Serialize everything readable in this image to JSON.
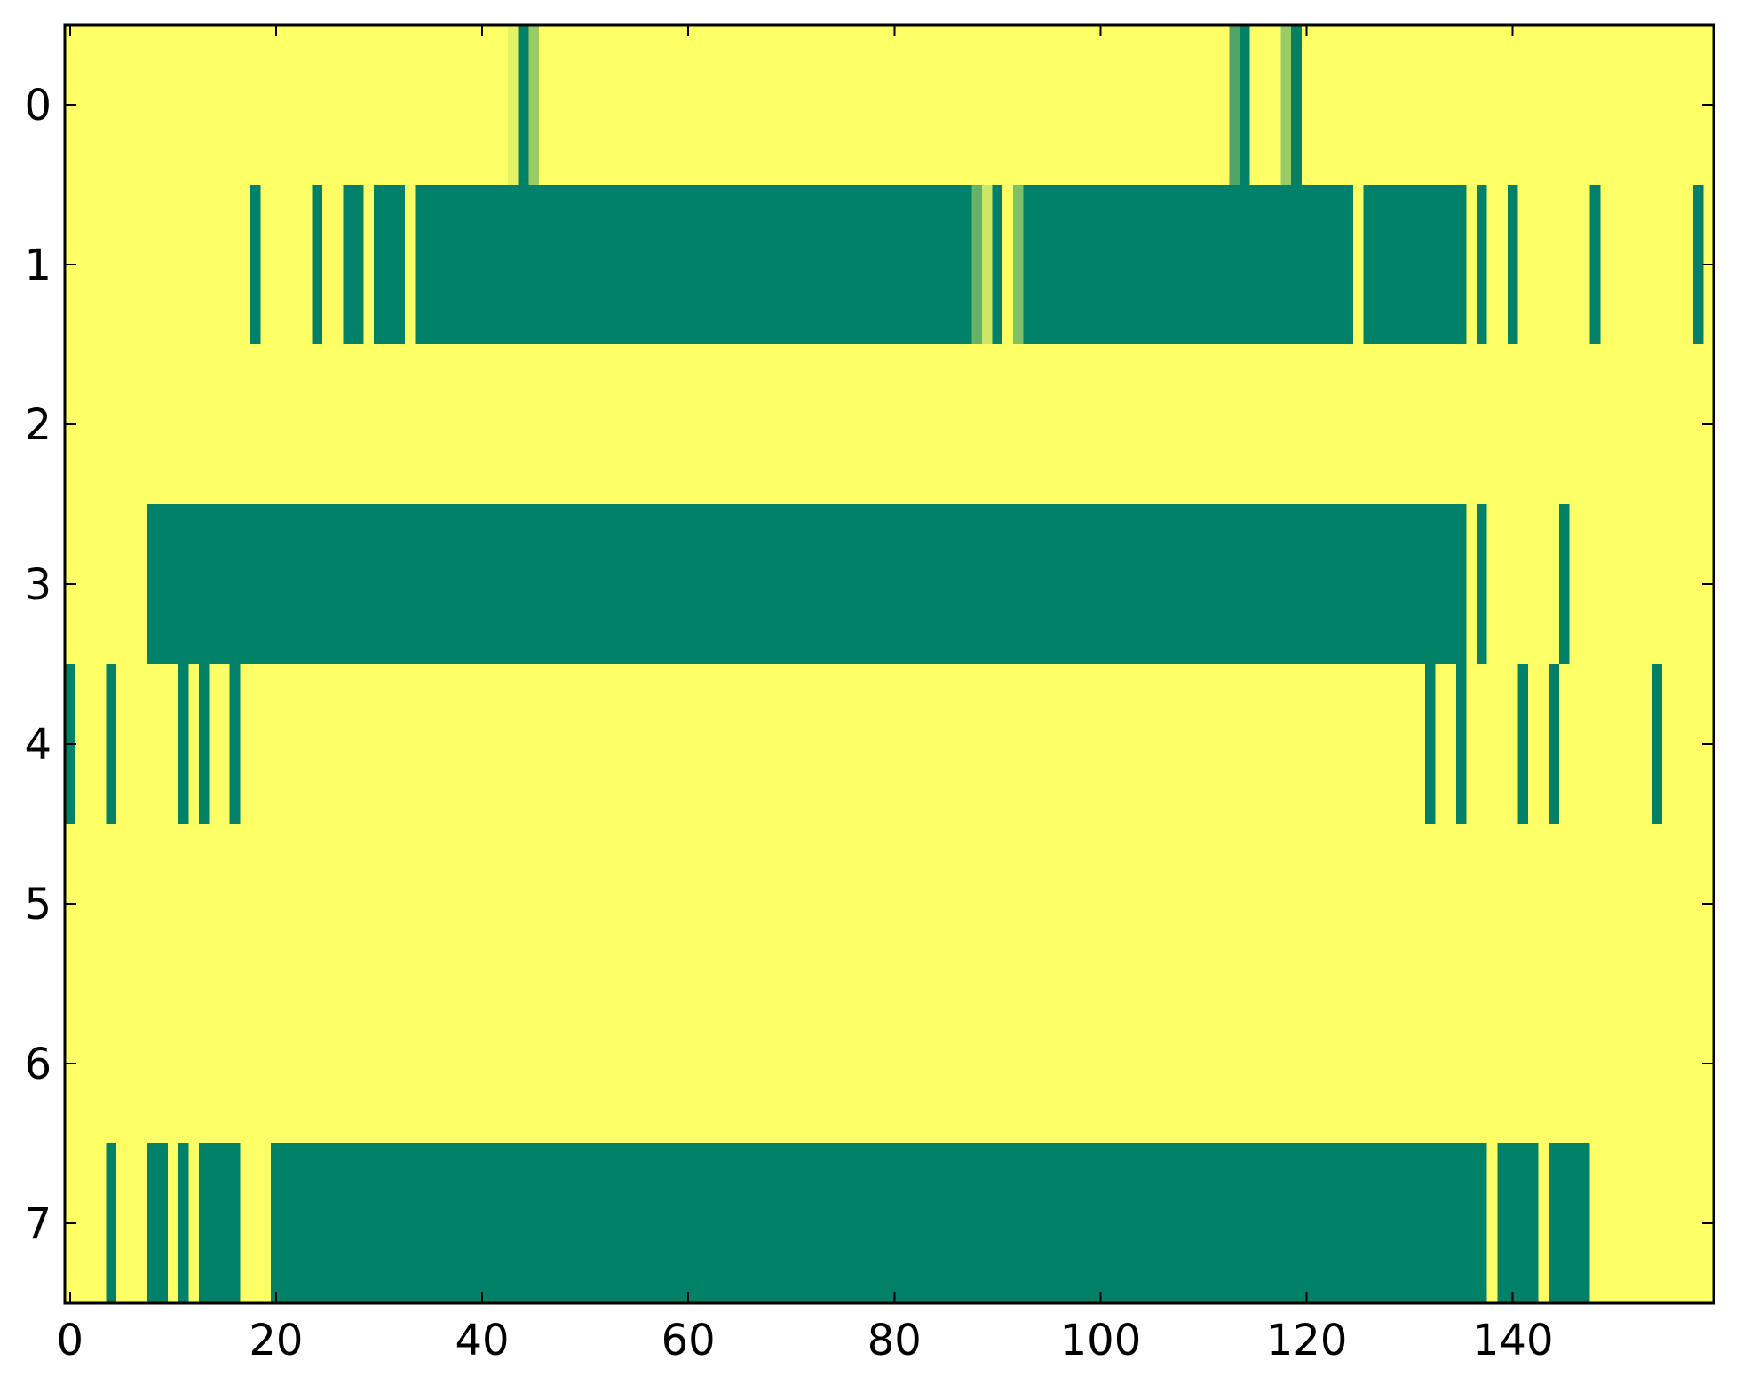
{
  "chart_data": {
    "type": "heatmap",
    "xlim": [
      -0.5,
      159.5
    ],
    "ylim": [
      7.5,
      -0.5
    ],
    "xticks": [
      0,
      20,
      40,
      60,
      80,
      100,
      120,
      140
    ],
    "yticks": [
      0,
      1,
      2,
      3,
      4,
      5,
      6,
      7
    ],
    "cmap": [
      "#ffff66",
      "#008066"
    ],
    "clim": [
      0,
      1
    ],
    "z": [
      [
        0,
        0,
        0,
        0,
        0,
        0,
        0,
        0,
        0,
        0,
        0,
        0,
        0,
        0,
        0,
        0,
        0,
        0,
        0,
        0,
        0,
        0,
        0,
        0,
        0,
        0,
        0,
        0,
        0,
        0,
        0,
        0,
        0,
        0,
        0,
        0,
        0,
        0,
        0,
        0,
        0,
        0,
        0,
        0.1,
        1,
        0.4,
        0,
        0,
        0,
        0,
        0,
        0,
        0,
        0,
        0,
        0,
        0,
        0,
        0,
        0,
        0,
        0,
        0,
        0,
        0,
        0,
        0,
        0,
        0,
        0,
        0,
        0,
        0,
        0,
        0,
        0,
        0,
        0,
        0,
        0,
        0,
        0,
        0,
        0,
        0,
        0,
        0,
        0,
        0,
        0,
        0,
        0,
        0,
        0,
        0,
        0,
        0,
        0,
        0,
        0,
        0,
        0,
        0,
        0,
        0,
        0,
        0,
        0,
        0,
        0,
        0,
        0,
        0,
        0.7,
        1,
        0,
        0,
        0,
        0.4,
        1,
        0,
        0,
        0,
        0,
        0,
        0,
        0,
        0,
        0,
        0,
        0,
        0,
        0,
        0,
        0,
        0,
        0,
        0,
        0,
        0,
        0,
        0,
        0,
        0,
        0,
        0,
        0,
        0,
        0,
        0,
        0,
        0,
        0,
        0,
        0,
        0,
        0,
        0,
        0,
        0
      ],
      [
        0,
        0,
        0,
        0,
        0,
        0,
        0,
        0,
        0,
        0,
        0,
        0,
        0,
        0,
        0,
        0,
        0,
        0,
        1,
        0,
        0,
        0,
        0,
        0,
        1,
        0,
        0,
        1,
        1,
        0,
        1,
        1,
        1,
        0,
        1,
        1,
        1,
        1,
        1,
        1,
        1,
        1,
        1,
        1,
        1,
        1,
        1,
        1,
        1,
        1,
        1,
        1,
        1,
        1,
        1,
        1,
        1,
        1,
        1,
        1,
        1,
        1,
        1,
        1,
        1,
        1,
        1,
        1,
        1,
        1,
        1,
        1,
        1,
        1,
        1,
        1,
        1,
        1,
        1,
        1,
        1,
        1,
        1,
        1,
        1,
        1,
        1,
        1,
        0.6,
        0.2,
        1,
        0,
        0.5,
        1,
        1,
        1,
        1,
        1,
        1,
        1,
        1,
        1,
        1,
        1,
        1,
        1,
        1,
        1,
        1,
        1,
        1,
        1,
        1,
        1,
        1,
        1,
        1,
        1,
        1,
        1,
        1,
        1,
        1,
        1,
        1,
        0,
        1,
        1,
        1,
        1,
        1,
        1,
        1,
        1,
        1,
        1,
        0,
        1,
        0,
        0,
        1,
        0,
        0,
        0,
        0,
        0,
        0,
        0,
        1,
        0,
        0,
        0,
        0,
        0,
        0,
        0,
        0,
        0,
        1,
        0
      ],
      [
        0,
        0,
        0,
        0,
        0,
        0,
        0,
        0,
        0,
        0,
        0,
        0,
        0,
        0,
        0,
        0,
        0,
        0,
        0,
        0,
        0,
        0,
        0,
        0,
        0,
        0,
        0,
        0,
        0,
        0,
        0,
        0,
        0,
        0,
        0,
        0,
        0,
        0,
        0,
        0,
        0,
        0,
        0,
        0,
        0,
        0,
        0,
        0,
        0,
        0,
        0,
        0,
        0,
        0,
        0,
        0,
        0,
        0,
        0,
        0,
        0,
        0,
        0,
        0,
        0,
        0,
        0,
        0,
        0,
        0,
        0,
        0,
        0,
        0,
        0,
        0,
        0,
        0,
        0,
        0,
        0,
        0,
        0,
        0,
        0,
        0,
        0,
        0,
        0,
        0,
        0,
        0,
        0,
        0,
        0,
        0,
        0,
        0,
        0,
        0,
        0,
        0,
        0,
        0,
        0,
        0,
        0,
        0,
        0,
        0,
        0,
        0,
        0,
        0,
        0,
        0,
        0,
        0,
        0,
        0,
        0,
        0,
        0,
        0,
        0,
        0,
        0,
        0,
        0,
        0,
        0,
        0,
        0,
        0,
        0,
        0,
        0,
        0,
        0,
        0,
        0,
        0,
        0,
        0,
        0,
        0,
        0,
        0,
        0,
        0,
        0,
        0,
        0,
        0,
        0,
        0,
        0,
        0,
        0,
        0
      ],
      [
        0,
        0,
        0,
        0,
        0,
        0,
        0,
        0,
        1,
        1,
        1,
        1,
        1,
        1,
        1,
        1,
        1,
        1,
        1,
        1,
        1,
        1,
        1,
        1,
        1,
        1,
        1,
        1,
        1,
        1,
        1,
        1,
        1,
        1,
        1,
        1,
        1,
        1,
        1,
        1,
        1,
        1,
        1,
        1,
        1,
        1,
        1,
        1,
        1,
        1,
        1,
        1,
        1,
        1,
        1,
        1,
        1,
        1,
        1,
        1,
        1,
        1,
        1,
        1,
        1,
        1,
        1,
        1,
        1,
        1,
        1,
        1,
        1,
        1,
        1,
        1,
        1,
        1,
        1,
        1,
        1,
        1,
        1,
        1,
        1,
        1,
        1,
        1,
        1,
        1,
        1,
        1,
        1,
        1,
        1,
        1,
        1,
        1,
        1,
        1,
        1,
        1,
        1,
        1,
        1,
        1,
        1,
        1,
        1,
        1,
        1,
        1,
        1,
        1,
        1,
        1,
        1,
        1,
        1,
        1,
        1,
        1,
        1,
        1,
        1,
        1,
        1,
        1,
        1,
        1,
        1,
        1,
        1,
        1,
        1,
        1,
        0,
        1,
        0,
        0,
        0,
        0,
        0,
        0,
        0,
        1,
        0,
        0,
        0,
        0,
        0,
        0,
        0,
        0,
        0,
        0,
        0,
        0,
        0,
        0
      ],
      [
        1,
        0,
        0,
        0,
        1,
        0,
        0,
        0,
        0,
        0,
        0,
        1,
        0,
        1,
        0,
        0,
        1,
        0,
        0,
        0,
        0,
        0,
        0,
        0,
        0,
        0,
        0,
        0,
        0,
        0,
        0,
        0,
        0,
        0,
        0,
        0,
        0,
        0,
        0,
        0,
        0,
        0,
        0,
        0,
        0,
        0,
        0,
        0,
        0,
        0,
        0,
        0,
        0,
        0,
        0,
        0,
        0,
        0,
        0,
        0,
        0,
        0,
        0,
        0,
        0,
        0,
        0,
        0,
        0,
        0,
        0,
        0,
        0,
        0,
        0,
        0,
        0,
        0,
        0,
        0,
        0,
        0,
        0,
        0,
        0,
        0,
        0,
        0,
        0,
        0,
        0,
        0,
        0,
        0,
        0,
        0,
        0,
        0,
        0,
        0,
        0,
        0,
        0,
        0,
        0,
        0,
        0,
        0,
        0,
        0,
        0,
        0,
        0,
        0,
        0,
        0,
        0,
        0,
        0,
        0,
        0,
        0,
        0,
        0,
        0,
        0,
        0,
        0,
        0,
        0,
        0,
        0,
        1,
        0,
        0,
        1,
        0,
        0,
        0,
        0,
        0,
        1,
        0,
        0,
        1,
        0,
        0,
        0,
        0,
        0,
        0,
        0,
        0,
        0,
        1,
        0,
        0,
        0,
        0,
        0
      ],
      [
        0,
        0,
        0,
        0,
        0,
        0,
        0,
        0,
        0,
        0,
        0,
        0,
        0,
        0,
        0,
        0,
        0,
        0,
        0,
        0,
        0,
        0,
        0,
        0,
        0,
        0,
        0,
        0,
        0,
        0,
        0,
        0,
        0,
        0,
        0,
        0,
        0,
        0,
        0,
        0,
        0,
        0,
        0,
        0,
        0,
        0,
        0,
        0,
        0,
        0,
        0,
        0,
        0,
        0,
        0,
        0,
        0,
        0,
        0,
        0,
        0,
        0,
        0,
        0,
        0,
        0,
        0,
        0,
        0,
        0,
        0,
        0,
        0,
        0,
        0,
        0,
        0,
        0,
        0,
        0,
        0,
        0,
        0,
        0,
        0,
        0,
        0,
        0,
        0,
        0,
        0,
        0,
        0,
        0,
        0,
        0,
        0,
        0,
        0,
        0,
        0,
        0,
        0,
        0,
        0,
        0,
        0,
        0,
        0,
        0,
        0,
        0,
        0,
        0,
        0,
        0,
        0,
        0,
        0,
        0,
        0,
        0,
        0,
        0,
        0,
        0,
        0,
        0,
        0,
        0,
        0,
        0,
        0,
        0,
        0,
        0,
        0,
        0,
        0,
        0,
        0,
        0,
        0,
        0,
        0,
        0,
        0,
        0,
        0,
        0,
        0,
        0,
        0,
        0,
        0,
        0,
        0,
        0,
        0,
        0
      ],
      [
        0,
        0,
        0,
        0,
        0,
        0,
        0,
        0,
        0,
        0,
        0,
        0,
        0,
        0,
        0,
        0,
        0,
        0,
        0,
        0,
        0,
        0,
        0,
        0,
        0,
        0,
        0,
        0,
        0,
        0,
        0,
        0,
        0,
        0,
        0,
        0,
        0,
        0,
        0,
        0,
        0,
        0,
        0,
        0,
        0,
        0,
        0,
        0,
        0,
        0,
        0,
        0,
        0,
        0,
        0,
        0,
        0,
        0,
        0,
        0,
        0,
        0,
        0,
        0,
        0,
        0,
        0,
        0,
        0,
        0,
        0,
        0,
        0,
        0,
        0,
        0,
        0,
        0,
        0,
        0,
        0,
        0,
        0,
        0,
        0,
        0,
        0,
        0,
        0,
        0,
        0,
        0,
        0,
        0,
        0,
        0,
        0,
        0,
        0,
        0,
        0,
        0,
        0,
        0,
        0,
        0,
        0,
        0,
        0,
        0,
        0,
        0,
        0,
        0,
        0,
        0,
        0,
        0,
        0,
        0,
        0,
        0,
        0,
        0,
        0,
        0,
        0,
        0,
        0,
        0,
        0,
        0,
        0,
        0,
        0,
        0,
        0,
        0,
        0,
        0,
        0,
        0,
        0,
        0,
        0,
        0,
        0,
        0,
        0,
        0,
        0,
        0,
        0,
        0,
        0,
        0,
        0,
        0,
        0,
        0
      ],
      [
        0,
        0,
        0,
        0,
        1,
        0,
        0,
        0,
        1,
        1,
        0,
        1,
        0,
        1,
        1,
        1,
        1,
        0,
        0,
        0,
        1,
        1,
        1,
        1,
        1,
        1,
        1,
        1,
        1,
        1,
        1,
        1,
        1,
        1,
        1,
        1,
        1,
        1,
        1,
        1,
        1,
        1,
        1,
        1,
        1,
        1,
        1,
        1,
        1,
        1,
        1,
        1,
        1,
        1,
        1,
        1,
        1,
        1,
        1,
        1,
        1,
        1,
        1,
        1,
        1,
        1,
        1,
        1,
        1,
        1,
        1,
        1,
        1,
        1,
        1,
        1,
        1,
        1,
        1,
        1,
        1,
        1,
        1,
        1,
        1,
        1,
        1,
        1,
        1,
        1,
        1,
        1,
        1,
        1,
        1,
        1,
        1,
        1,
        1,
        1,
        1,
        1,
        1,
        1,
        1,
        1,
        1,
        1,
        1,
        1,
        1,
        1,
        1,
        1,
        1,
        1,
        1,
        1,
        1,
        1,
        1,
        1,
        1,
        1,
        1,
        1,
        1,
        1,
        1,
        1,
        1,
        1,
        1,
        1,
        1,
        1,
        1,
        1,
        0,
        1,
        1,
        1,
        1,
        0,
        1,
        1,
        1,
        1,
        0,
        0,
        0,
        0,
        0,
        0,
        0,
        0,
        0,
        0,
        0,
        0
      ]
    ]
  }
}
